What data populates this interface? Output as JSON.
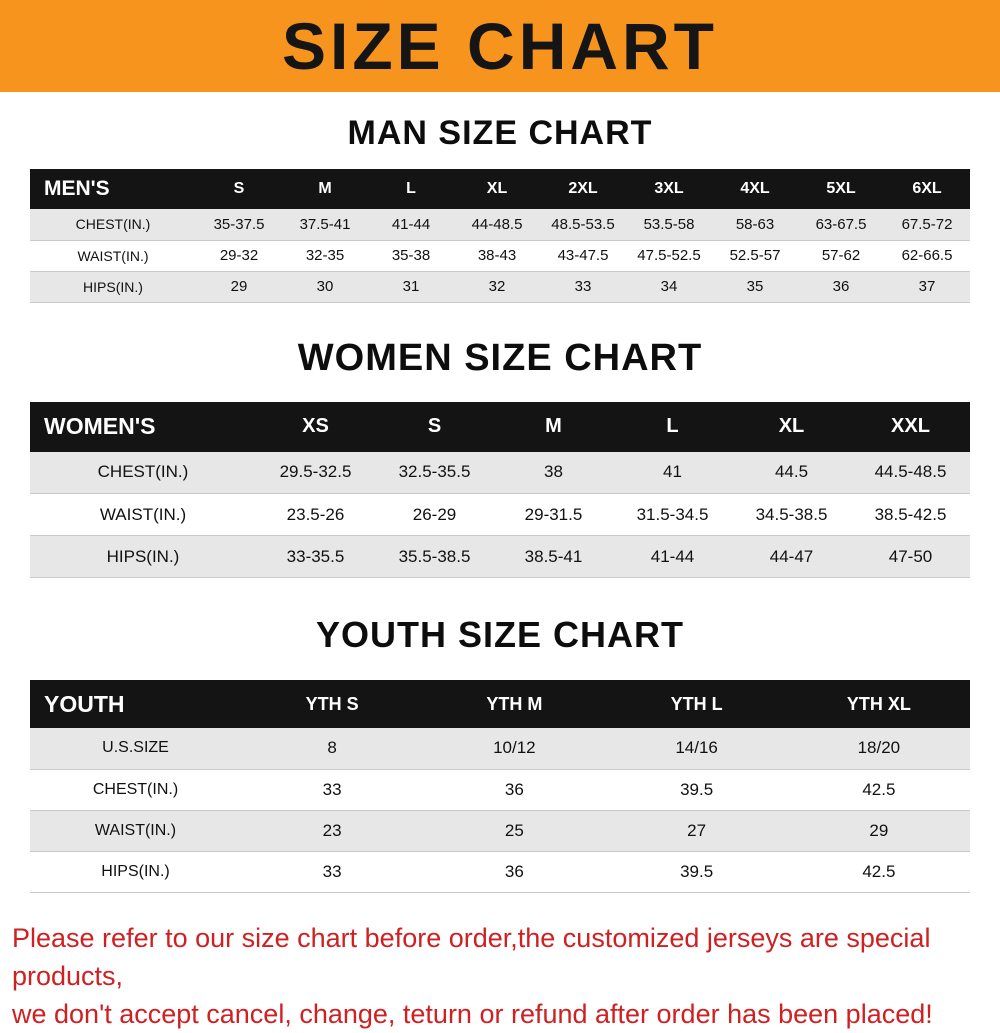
{
  "banner": {
    "title": "SIZE CHART",
    "bg_color": "#f7941d"
  },
  "sections": [
    {
      "heading": "MAN SIZE CHART",
      "table": {
        "label": "MEN'S",
        "columns": [
          "S",
          "M",
          "L",
          "XL",
          "2XL",
          "3XL",
          "4XL",
          "5XL",
          "6XL"
        ],
        "rows": [
          {
            "label": "CHEST(IN.)",
            "values": [
              "35-37.5",
              "37.5-41",
              "41-44",
              "44-48.5",
              "48.5-53.5",
              "53.5-58",
              "58-63",
              "63-67.5",
              "67.5-72"
            ]
          },
          {
            "label": "WAIST(IN.)",
            "values": [
              "29-32",
              "32-35",
              "35-38",
              "38-43",
              "43-47.5",
              "47.5-52.5",
              "52.5-57",
              "57-62",
              "62-66.5"
            ]
          },
          {
            "label": "HIPS(IN.)",
            "values": [
              "29",
              "30",
              "31",
              "32",
              "33",
              "34",
              "35",
              "36",
              "37"
            ]
          }
        ]
      }
    },
    {
      "heading": "WOMEN SIZE CHART",
      "table": {
        "label": "WOMEN'S",
        "columns": [
          "XS",
          "S",
          "M",
          "L",
          "XL",
          "XXL"
        ],
        "rows": [
          {
            "label": "CHEST(IN.)",
            "values": [
              "29.5-32.5",
              "32.5-35.5",
              "38",
              "41",
              "44.5",
              "44.5-48.5"
            ]
          },
          {
            "label": "WAIST(IN.)",
            "values": [
              "23.5-26",
              "26-29",
              "29-31.5",
              "31.5-34.5",
              "34.5-38.5",
              "38.5-42.5"
            ]
          },
          {
            "label": "HIPS(IN.)",
            "values": [
              "33-35.5",
              "35.5-38.5",
              "38.5-41",
              "41-44",
              "44-47",
              "47-50"
            ]
          }
        ]
      }
    },
    {
      "heading": "YOUTH SIZE CHART",
      "table": {
        "label": "YOUTH",
        "columns": [
          "YTH S",
          "YTH M",
          "YTH L",
          "YTH XL"
        ],
        "rows": [
          {
            "label": "U.S.SIZE",
            "values": [
              "8",
              "10/12",
              "14/16",
              "18/20"
            ]
          },
          {
            "label": "CHEST(IN.)",
            "values": [
              "33",
              "36",
              "39.5",
              "42.5"
            ]
          },
          {
            "label": "WAIST(IN.)",
            "values": [
              "23",
              "25",
              "27",
              "29"
            ]
          },
          {
            "label": "HIPS(IN.)",
            "values": [
              "33",
              "36",
              "39.5",
              "42.5"
            ]
          }
        ]
      }
    }
  ],
  "footer": {
    "line1": "Please refer to our size chart before order,the customized jerseys are special products,",
    "line2": "we don't accept cancel, change, teturn or refund after order has been placed!",
    "color": "#cf2022"
  }
}
